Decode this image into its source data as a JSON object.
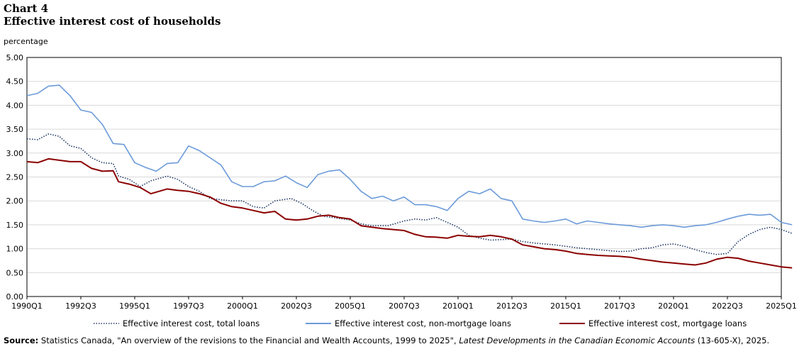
{
  "header": {
    "chart_number": "Chart 4",
    "title": "Effective interest cost of households",
    "y_unit": "percentage"
  },
  "source": {
    "label": "Source:",
    "text_before": "Statistics Canada, \"An overview of the revisions to the Financial and Wealth Accounts, 1999 to 2025\",",
    "publication": "Latest Developments in the Canadian Economic Accounts",
    "text_after": "(13-605-X), 2025."
  },
  "chart_data": {
    "type": "line",
    "ylim": [
      0,
      5
    ],
    "y_ticks": [
      "0.00",
      "0.50",
      "1.00",
      "1.50",
      "2.00",
      "2.50",
      "3.00",
      "3.50",
      "4.00",
      "4.50",
      "5.00"
    ],
    "x_start": "1990Q1",
    "x_end": "2025Q1",
    "x_tick_labels": [
      "1990Q1",
      "1992Q3",
      "1995Q1",
      "1997Q3",
      "2000Q1",
      "2002Q3",
      "2005Q1",
      "2007Q3",
      "2010Q1",
      "2012Q3",
      "2015Q1",
      "2017Q3",
      "2020Q1",
      "2022Q3",
      "2025Q1"
    ],
    "grid": true,
    "legend_position": "bottom",
    "colors": {
      "total": "#1f3864",
      "non_mortgage": "#6c9bd9",
      "mortgage": "#8b0000"
    },
    "series": [
      {
        "name": "Effective interest cost, total loans",
        "key": "total",
        "style": "dotted",
        "knots": [
          [
            "1990Q1",
            3.3
          ],
          [
            "1990Q3",
            3.28
          ],
          [
            "1991Q1",
            3.4
          ],
          [
            "1991Q3",
            3.35
          ],
          [
            "1992Q1",
            3.15
          ],
          [
            "1992Q3",
            3.1
          ],
          [
            "1993Q1",
            2.9
          ],
          [
            "1993Q3",
            2.8
          ],
          [
            "1994Q1",
            2.78
          ],
          [
            "1994Q2",
            2.52
          ],
          [
            "1994Q4",
            2.45
          ],
          [
            "1995Q2",
            2.3
          ],
          [
            "1995Q4",
            2.42
          ],
          [
            "1996Q3",
            2.52
          ],
          [
            "1997Q1",
            2.45
          ],
          [
            "1997Q3",
            2.3
          ],
          [
            "1998Q1",
            2.2
          ],
          [
            "1998Q3",
            2.05
          ],
          [
            "1999Q3",
            2.0
          ],
          [
            "2000Q1",
            2.0
          ],
          [
            "2000Q3",
            1.88
          ],
          [
            "2001Q1",
            1.85
          ],
          [
            "2001Q3",
            2.0
          ],
          [
            "2002Q2",
            2.05
          ],
          [
            "2002Q4",
            1.95
          ],
          [
            "2003Q2",
            1.8
          ],
          [
            "2003Q4",
            1.68
          ],
          [
            "2004Q2",
            1.65
          ],
          [
            "2005Q1",
            1.6
          ],
          [
            "2005Q3",
            1.52
          ],
          [
            "2006Q1",
            1.48
          ],
          [
            "2006Q4",
            1.48
          ],
          [
            "2007Q3",
            1.58
          ],
          [
            "2008Q1",
            1.62
          ],
          [
            "2008Q3",
            1.6
          ],
          [
            "2009Q1",
            1.65
          ],
          [
            "2009Q3",
            1.55
          ],
          [
            "2010Q1",
            1.45
          ],
          [
            "2010Q3",
            1.28
          ],
          [
            "2011Q1",
            1.22
          ],
          [
            "2011Q3",
            1.18
          ],
          [
            "2012Q3",
            1.2
          ],
          [
            "2013Q1",
            1.15
          ],
          [
            "2013Q3",
            1.12
          ],
          [
            "2014Q3",
            1.08
          ],
          [
            "2015Q1",
            1.05
          ],
          [
            "2015Q3",
            1.02
          ],
          [
            "2016Q3",
            0.98
          ],
          [
            "2017Q1",
            0.96
          ],
          [
            "2017Q3",
            0.94
          ],
          [
            "2018Q1",
            0.95
          ],
          [
            "2018Q3",
            1.0
          ],
          [
            "2019Q1",
            1.02
          ],
          [
            "2019Q3",
            1.08
          ],
          [
            "2020Q1",
            1.1
          ],
          [
            "2020Q3",
            1.05
          ],
          [
            "2021Q1",
            0.98
          ],
          [
            "2021Q3",
            0.92
          ],
          [
            "2022Q1",
            0.88
          ],
          [
            "2022Q3",
            0.9
          ],
          [
            "2023Q1",
            1.15
          ],
          [
            "2023Q3",
            1.3
          ],
          [
            "2024Q1",
            1.4
          ],
          [
            "2024Q3",
            1.45
          ],
          [
            "2025Q1",
            1.4
          ],
          [
            "2025Q3",
            1.32
          ]
        ]
      },
      {
        "name": "Effective interest cost, non-mortgage loans",
        "key": "non_mortgage",
        "style": "solid",
        "knots": [
          [
            "1990Q1",
            4.2
          ],
          [
            "1990Q3",
            4.25
          ],
          [
            "1991Q1",
            4.4
          ],
          [
            "1991Q3",
            4.42
          ],
          [
            "1992Q1",
            4.2
          ],
          [
            "1992Q3",
            3.9
          ],
          [
            "1993Q1",
            3.85
          ],
          [
            "1993Q3",
            3.6
          ],
          [
            "1994Q1",
            3.2
          ],
          [
            "1994Q3",
            3.18
          ],
          [
            "1995Q1",
            2.8
          ],
          [
            "1995Q3",
            2.7
          ],
          [
            "1996Q1",
            2.62
          ],
          [
            "1996Q3",
            2.78
          ],
          [
            "1997Q1",
            2.8
          ],
          [
            "1997Q3",
            3.15
          ],
          [
            "1998Q1",
            3.05
          ],
          [
            "1998Q3",
            2.9
          ],
          [
            "1999Q1",
            2.75
          ],
          [
            "1999Q3",
            2.4
          ],
          [
            "2000Q1",
            2.3
          ],
          [
            "2000Q3",
            2.3
          ],
          [
            "2001Q1",
            2.4
          ],
          [
            "2001Q3",
            2.42
          ],
          [
            "2002Q1",
            2.52
          ],
          [
            "2002Q3",
            2.38
          ],
          [
            "2003Q1",
            2.28
          ],
          [
            "2003Q3",
            2.55
          ],
          [
            "2004Q1",
            2.62
          ],
          [
            "2004Q3",
            2.65
          ],
          [
            "2005Q1",
            2.45
          ],
          [
            "2005Q3",
            2.2
          ],
          [
            "2006Q1",
            2.05
          ],
          [
            "2006Q3",
            2.1
          ],
          [
            "2007Q1",
            2.0
          ],
          [
            "2007Q3",
            2.08
          ],
          [
            "2008Q1",
            1.92
          ],
          [
            "2008Q3",
            1.92
          ],
          [
            "2009Q1",
            1.88
          ],
          [
            "2009Q3",
            1.8
          ],
          [
            "2010Q1",
            2.05
          ],
          [
            "2010Q3",
            2.2
          ],
          [
            "2011Q1",
            2.15
          ],
          [
            "2011Q3",
            2.25
          ],
          [
            "2012Q1",
            2.05
          ],
          [
            "2012Q3",
            2.0
          ],
          [
            "2013Q1",
            1.62
          ],
          [
            "2013Q3",
            1.58
          ],
          [
            "2014Q1",
            1.55
          ],
          [
            "2014Q3",
            1.58
          ],
          [
            "2015Q1",
            1.62
          ],
          [
            "2015Q3",
            1.52
          ],
          [
            "2016Q1",
            1.58
          ],
          [
            "2016Q3",
            1.55
          ],
          [
            "2017Q1",
            1.52
          ],
          [
            "2017Q3",
            1.5
          ],
          [
            "2018Q1",
            1.48
          ],
          [
            "2018Q3",
            1.45
          ],
          [
            "2019Q1",
            1.48
          ],
          [
            "2019Q3",
            1.5
          ],
          [
            "2020Q1",
            1.48
          ],
          [
            "2020Q3",
            1.45
          ],
          [
            "2021Q1",
            1.48
          ],
          [
            "2021Q3",
            1.5
          ],
          [
            "2022Q1",
            1.55
          ],
          [
            "2022Q3",
            1.62
          ],
          [
            "2023Q1",
            1.68
          ],
          [
            "2023Q3",
            1.72
          ],
          [
            "2024Q1",
            1.7
          ],
          [
            "2024Q3",
            1.72
          ],
          [
            "2025Q1",
            1.55
          ],
          [
            "2025Q3",
            1.5
          ]
        ]
      },
      {
        "name": "Effective interest cost, mortgage loans",
        "key": "mortgage",
        "style": "solid",
        "knots": [
          [
            "1990Q1",
            2.82
          ],
          [
            "1990Q3",
            2.8
          ],
          [
            "1991Q1",
            2.88
          ],
          [
            "1991Q3",
            2.85
          ],
          [
            "1992Q1",
            2.82
          ],
          [
            "1992Q3",
            2.82
          ],
          [
            "1993Q1",
            2.68
          ],
          [
            "1993Q3",
            2.62
          ],
          [
            "1994Q1",
            2.63
          ],
          [
            "1994Q2",
            2.4
          ],
          [
            "1994Q4",
            2.35
          ],
          [
            "1995Q2",
            2.28
          ],
          [
            "1995Q4",
            2.15
          ],
          [
            "1996Q3",
            2.25
          ],
          [
            "1997Q1",
            2.22
          ],
          [
            "1997Q3",
            2.2
          ],
          [
            "1998Q1",
            2.15
          ],
          [
            "1998Q3",
            2.08
          ],
          [
            "1999Q1",
            1.95
          ],
          [
            "1999Q3",
            1.88
          ],
          [
            "2000Q1",
            1.85
          ],
          [
            "2000Q3",
            1.8
          ],
          [
            "2001Q1",
            1.75
          ],
          [
            "2001Q3",
            1.78
          ],
          [
            "2002Q1",
            1.62
          ],
          [
            "2002Q3",
            1.6
          ],
          [
            "2003Q1",
            1.62
          ],
          [
            "2003Q3",
            1.68
          ],
          [
            "2004Q1",
            1.7
          ],
          [
            "2004Q3",
            1.65
          ],
          [
            "2005Q1",
            1.62
          ],
          [
            "2005Q3",
            1.48
          ],
          [
            "2006Q1",
            1.45
          ],
          [
            "2006Q3",
            1.42
          ],
          [
            "2007Q1",
            1.4
          ],
          [
            "2007Q3",
            1.38
          ],
          [
            "2008Q1",
            1.3
          ],
          [
            "2008Q3",
            1.25
          ],
          [
            "2009Q1",
            1.24
          ],
          [
            "2009Q3",
            1.22
          ],
          [
            "2010Q1",
            1.28
          ],
          [
            "2010Q3",
            1.26
          ],
          [
            "2011Q1",
            1.25
          ],
          [
            "2011Q3",
            1.28
          ],
          [
            "2012Q1",
            1.25
          ],
          [
            "2012Q3",
            1.2
          ],
          [
            "2013Q1",
            1.08
          ],
          [
            "2013Q3",
            1.04
          ],
          [
            "2014Q1",
            1.0
          ],
          [
            "2014Q3",
            0.98
          ],
          [
            "2015Q1",
            0.95
          ],
          [
            "2015Q3",
            0.9
          ],
          [
            "2016Q1",
            0.88
          ],
          [
            "2016Q3",
            0.86
          ],
          [
            "2017Q1",
            0.85
          ],
          [
            "2017Q3",
            0.84
          ],
          [
            "2018Q1",
            0.82
          ],
          [
            "2018Q3",
            0.78
          ],
          [
            "2019Q1",
            0.75
          ],
          [
            "2019Q3",
            0.72
          ],
          [
            "2020Q1",
            0.7
          ],
          [
            "2020Q3",
            0.68
          ],
          [
            "2021Q1",
            0.66
          ],
          [
            "2021Q3",
            0.7
          ],
          [
            "2022Q1",
            0.78
          ],
          [
            "2022Q3",
            0.82
          ],
          [
            "2023Q1",
            0.8
          ],
          [
            "2023Q3",
            0.74
          ],
          [
            "2024Q1",
            0.7
          ],
          [
            "2024Q3",
            0.66
          ],
          [
            "2025Q1",
            0.62
          ],
          [
            "2025Q3",
            0.6
          ]
        ]
      }
    ]
  }
}
